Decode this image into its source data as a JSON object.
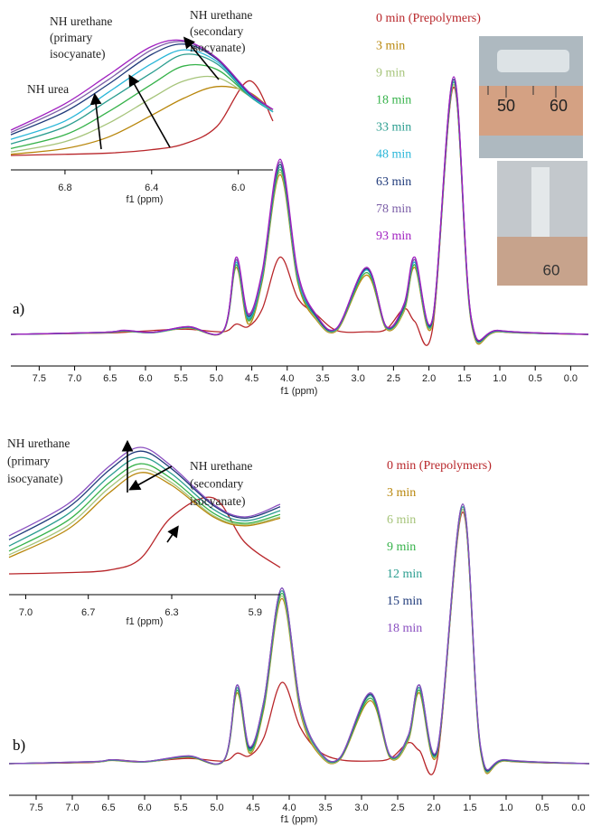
{
  "figure": {
    "panel_labels": [
      "a)",
      "b)"
    ],
    "photo_labels": [
      "50",
      "60",
      "60"
    ]
  },
  "chart_data": [
    {
      "type": "line",
      "xlabel": "f1 (ppm)",
      "x": [
        7.9,
        6.6,
        6.3,
        5.9,
        5.4,
        4.9,
        4.72,
        4.55,
        4.35,
        4.1,
        3.85,
        3.6,
        3.3,
        2.88,
        2.6,
        2.35,
        2.2,
        1.95,
        1.65,
        1.4,
        1.0,
        -0.25
      ],
      "xlim": [
        7.9,
        -0.25
      ],
      "ylim": [
        0,
        100
      ],
      "xticks": [
        7.5,
        {
          "value": 7,
          "label": "7.0"
        },
        6.5,
        {
          "value": 6,
          "label": "6.0"
        },
        5.5,
        {
          "value": 5,
          "label": "5.0"
        },
        4.5,
        {
          "value": 4,
          "label": "4.0"
        },
        3.5,
        {
          "value": 3,
          "label": "3.0"
        },
        2.5,
        {
          "value": 2,
          "label": "2.0"
        },
        1.5,
        {
          "value": 1,
          "label": "1.0"
        },
        0.5,
        {
          "value": 0,
          "label": "0.0"
        }
      ],
      "series": [
        {
          "name": "0 min (Prepolymers)",
          "color": "#b8262a",
          "values": [
            0,
            0.5,
            0.8,
            1.5,
            2,
            1,
            4,
            3,
            10,
            30,
            14,
            8,
            1.5,
            1,
            2,
            10,
            5,
            2,
            96,
            5,
            1,
            0
          ]
        },
        {
          "name": "3 min",
          "color": "#b8860b",
          "values": [
            0,
            0.6,
            1.2,
            0.6,
            2.5,
            1.2,
            26,
            4,
            21,
            62,
            20,
            6,
            1.5,
            23,
            2,
            9,
            26,
            4,
            97,
            4,
            1,
            0
          ]
        },
        {
          "name": "9 min",
          "color": "#a6c47a",
          "values": [
            0,
            0.6,
            1.3,
            0.6,
            2.6,
            1.3,
            27,
            5,
            22,
            63,
            21,
            6.5,
            1.8,
            24,
            2.3,
            9.5,
            27,
            4.5,
            97,
            4.5,
            1.1,
            0
          ]
        },
        {
          "name": "18 min",
          "color": "#36b24a",
          "values": [
            0,
            0.7,
            1.3,
            0.7,
            2.7,
            1.3,
            27,
            5.5,
            22,
            64,
            21,
            7,
            2,
            24,
            2.5,
            10,
            27,
            5,
            98,
            5,
            1.2,
            0
          ]
        },
        {
          "name": "33 min",
          "color": "#2a9d8f",
          "values": [
            0,
            0.7,
            1.4,
            0.7,
            2.8,
            1.4,
            28,
            6,
            23,
            65,
            22,
            7,
            2,
            25,
            2.6,
            10.5,
            28,
            5,
            98,
            5,
            1.3,
            0
          ]
        },
        {
          "name": "48 min",
          "color": "#29b6d8",
          "values": [
            0,
            0.7,
            1.4,
            0.7,
            2.8,
            1.4,
            28,
            6.5,
            23,
            66,
            22,
            7.5,
            2.2,
            25,
            2.8,
            11,
            28,
            5.5,
            99,
            5.5,
            1.3,
            0
          ]
        },
        {
          "name": "63 min",
          "color": "#1f3a7a",
          "values": [
            0,
            0.8,
            1.5,
            0.8,
            2.9,
            1.5,
            29,
            7,
            24,
            66,
            23,
            7.5,
            2.3,
            25.5,
            2.9,
            11,
            29,
            5.5,
            99,
            5.5,
            1.4,
            0
          ]
        },
        {
          "name": "78 min",
          "color": "#7b5ea7",
          "values": [
            0,
            0.8,
            1.5,
            0.8,
            3,
            1.5,
            29,
            7.5,
            24,
            67,
            23,
            8,
            2.4,
            26,
            3,
            11.5,
            29,
            6,
            100,
            6,
            1.5,
            0
          ]
        },
        {
          "name": "93 min",
          "color": "#a020c0",
          "values": [
            0,
            0.8,
            1.6,
            0.8,
            3,
            1.5,
            30,
            8,
            25,
            68,
            24,
            8,
            2.5,
            26,
            3,
            12,
            30,
            6,
            100,
            6,
            1.5,
            0
          ]
        }
      ]
    },
    {
      "type": "line",
      "xlabel": "f1 (ppm)",
      "annotations": [
        [
          "NH urethane",
          "(primary",
          "isocyanate)"
        ],
        [
          "NH urethane",
          "(secondary",
          "isocyanate)"
        ],
        [
          "NH urea"
        ]
      ],
      "x": [
        7.05,
        6.8,
        6.6,
        6.4,
        6.25,
        6.1,
        5.95,
        5.84
      ],
      "xlim": [
        7.05,
        5.84
      ],
      "ylim": [
        0,
        100
      ],
      "xticks": [
        6.8,
        6.4,
        {
          "value": 6,
          "label": "6.0"
        }
      ],
      "series": [
        {
          "color": "#b8262a",
          "values": [
            0,
            1,
            2,
            5,
            10,
            25,
            65,
            30
          ]
        },
        {
          "color": "#b8860b",
          "values": [
            1,
            6,
            16,
            35,
            50,
            60,
            55,
            38
          ]
        },
        {
          "color": "#a6c47a",
          "values": [
            3,
            12,
            28,
            50,
            65,
            68,
            52,
            38
          ]
        },
        {
          "color": "#36b24a",
          "values": [
            6,
            18,
            38,
            62,
            78,
            75,
            52,
            38
          ]
        },
        {
          "color": "#2a9d8f",
          "values": [
            10,
            25,
            48,
            72,
            88,
            80,
            52,
            38
          ]
        },
        {
          "color": "#29b6d8",
          "values": [
            14,
            30,
            55,
            80,
            92,
            82,
            53,
            38
          ]
        },
        {
          "color": "#1f3a7a",
          "values": [
            18,
            38,
            62,
            88,
            97,
            84,
            54,
            40
          ]
        },
        {
          "color": "#7b5ea7",
          "values": [
            20,
            42,
            66,
            92,
            99,
            85,
            55,
            40
          ]
        },
        {
          "color": "#a020c0",
          "values": [
            22,
            45,
            70,
            95,
            100,
            85,
            55,
            40
          ]
        }
      ]
    },
    {
      "type": "line",
      "xlabel": "f1 (ppm)",
      "x": [
        7.875,
        6.7,
        6.45,
        6.0,
        5.4,
        4.9,
        4.72,
        4.55,
        4.35,
        4.1,
        3.85,
        3.6,
        3.3,
        2.88,
        2.6,
        2.35,
        2.2,
        1.95,
        1.6,
        1.35,
        1.0,
        -0.15
      ],
      "xlim": [
        7.875,
        -0.15
      ],
      "ylim": [
        0,
        100
      ],
      "xticks": [
        7.5,
        {
          "value": 7,
          "label": "7.0"
        },
        6.5,
        {
          "value": 6,
          "label": "6.0"
        },
        5.5,
        {
          "value": 5,
          "label": "5.0"
        },
        4.5,
        {
          "value": 4,
          "label": "4.0"
        },
        3.5,
        {
          "value": 3,
          "label": "3.0"
        },
        2.5,
        {
          "value": 2,
          "label": "2.0"
        },
        1.5,
        {
          "value": 1,
          "label": "1.0"
        },
        0.5,
        {
          "value": 0,
          "label": "0.0"
        }
      ],
      "series": [
        {
          "name": "0 min (Prepolymers)",
          "color": "#b8262a",
          "values": [
            0,
            0.5,
            1.5,
            0.8,
            2,
            1,
            4,
            3,
            10,
            31,
            14,
            5,
            1.5,
            1,
            2,
            8,
            5,
            2,
            96,
            5,
            1,
            0
          ]
        },
        {
          "name": "3 min",
          "color": "#b8860b",
          "values": [
            0,
            0.6,
            1.2,
            0.6,
            2.5,
            1.2,
            27,
            4,
            21,
            63,
            20,
            4,
            1.5,
            24,
            2,
            9,
            27,
            4,
            97,
            4,
            1,
            0
          ]
        },
        {
          "name": "6 min",
          "color": "#a6c47a",
          "values": [
            0,
            0.6,
            1.3,
            0.6,
            2.6,
            1.3,
            28,
            4.5,
            22,
            64,
            21,
            4.5,
            1.7,
            25,
            2.3,
            9.5,
            28,
            4.5,
            97,
            4.5,
            1.1,
            0
          ]
        },
        {
          "name": "9 min",
          "color": "#36b24a",
          "values": [
            0,
            0.7,
            1.3,
            0.7,
            2.7,
            1.3,
            28,
            5,
            22,
            65,
            22,
            5,
            1.9,
            25,
            2.5,
            10,
            28,
            5,
            98,
            5,
            1.2,
            0
          ]
        },
        {
          "name": "12 min",
          "color": "#2a9d8f",
          "values": [
            0,
            0.7,
            1.4,
            0.7,
            2.8,
            1.4,
            29,
            5.5,
            23,
            66,
            22,
            5,
            2,
            26,
            2.7,
            10.5,
            29,
            5,
            98,
            5,
            1.3,
            0
          ]
        },
        {
          "name": "15 min",
          "color": "#1f3a7a",
          "values": [
            0,
            0.8,
            1.5,
            0.8,
            2.9,
            1.5,
            30,
            6,
            24,
            67,
            23,
            5.5,
            2.2,
            26.5,
            2.9,
            11,
            30,
            5.5,
            99,
            5.5,
            1.4,
            0
          ]
        },
        {
          "name": "18 min",
          "color": "#8a4fc0",
          "values": [
            0,
            0.8,
            1.5,
            0.8,
            3,
            1.5,
            30,
            6.5,
            24,
            67,
            23,
            5.5,
            2.3,
            27,
            3,
            11,
            30,
            6,
            99,
            6,
            1.5,
            0
          ]
        }
      ]
    },
    {
      "type": "line",
      "xlabel": "f1 (ppm)",
      "annotations": [
        [
          "NH urethane",
          "(primary",
          "isocyanate)"
        ],
        [
          "NH urethane",
          "(secondary",
          "isocyanate)"
        ]
      ],
      "x": [
        7.08,
        6.8,
        6.6,
        6.45,
        6.3,
        6.1,
        5.95,
        5.78
      ],
      "xlim": [
        7.08,
        5.78
      ],
      "ylim": [
        0,
        100
      ],
      "xticks": [
        {
          "value": 7,
          "label": "7.0"
        },
        6.7,
        6.3,
        5.9
      ],
      "series": [
        {
          "color": "#b8262a",
          "values": [
            0,
            1,
            3,
            12,
            45,
            60,
            25,
            5
          ]
        },
        {
          "color": "#b8860b",
          "values": [
            13,
            35,
            64,
            80,
            70,
            45,
            38,
            44
          ]
        },
        {
          "color": "#a6c47a",
          "values": [
            15,
            38,
            68,
            83,
            72,
            46,
            39,
            45
          ]
        },
        {
          "color": "#36b24a",
          "values": [
            18,
            42,
            72,
            87,
            75,
            48,
            40,
            47
          ]
        },
        {
          "color": "#2a9d8f",
          "values": [
            22,
            47,
            77,
            92,
            79,
            51,
            42,
            50
          ]
        },
        {
          "color": "#1f3a7a",
          "values": [
            27,
            52,
            82,
            97,
            83,
            54,
            44,
            53
          ]
        },
        {
          "color": "#8a4fc0",
          "values": [
            30,
            55,
            85,
            100,
            85,
            55,
            45,
            55
          ]
        }
      ]
    }
  ]
}
